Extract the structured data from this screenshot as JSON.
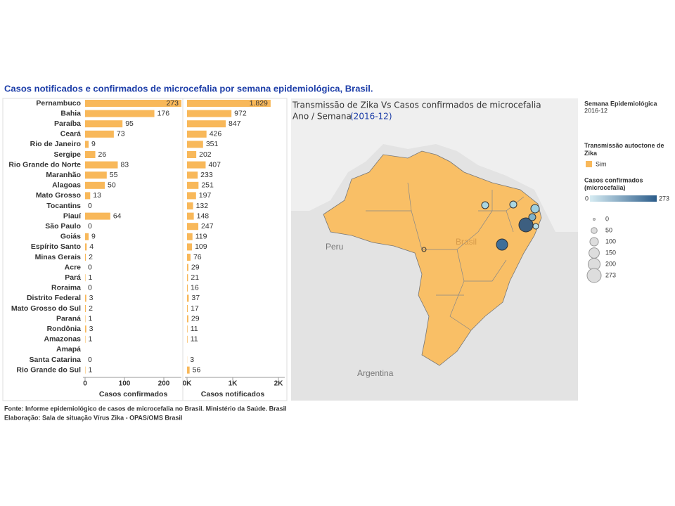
{
  "chart_data": [
    {
      "type": "bar",
      "orientation": "horizontal",
      "title": "Casos notificados e confirmados de microcefalia por semana epidemiológica, Brasil.",
      "categories": [
        "Pernambuco",
        "Bahia",
        "Paraíba",
        "Ceará",
        "Rio de Janeiro",
        "Sergipe",
        "Rio Grande do Norte",
        "Maranhão",
        "Alagoas",
        "Mato Grosso",
        "Tocantins",
        "Piauí",
        "São Paulo",
        "Goiás",
        "Espírito Santo",
        "Minas Gerais",
        "Acre",
        "Pará",
        "Roraima",
        "Distrito Federal",
        "Mato Grosso do Sul",
        "Paraná",
        "Rondônia",
        "Amazonas",
        "Amapá",
        "Santa Catarina",
        "Rio Grande do Sul"
      ],
      "values": [
        273,
        176,
        95,
        73,
        9,
        26,
        83,
        55,
        50,
        13,
        0,
        64,
        0,
        9,
        4,
        2,
        0,
        1,
        0,
        3,
        2,
        1,
        3,
        1,
        null,
        0,
        1
      ],
      "color": "#f8b85a",
      "xlabel": "Casos confirmados",
      "xlim": [
        0,
        245
      ],
      "xticks": [
        0,
        100,
        200
      ]
    },
    {
      "type": "bar",
      "orientation": "horizontal",
      "values": [
        1829,
        972,
        847,
        426,
        351,
        202,
        407,
        233,
        251,
        197,
        132,
        148,
        247,
        119,
        109,
        76,
        29,
        21,
        16,
        37,
        17,
        29,
        11,
        11,
        null,
        3,
        56
      ],
      "value_labels": [
        "1.829",
        "972",
        "847",
        "426",
        "351",
        "202",
        "407",
        "233",
        "251",
        "197",
        "132",
        "148",
        "247",
        "119",
        "109",
        "76",
        "29",
        "21",
        "16",
        "37",
        "17",
        "29",
        "11",
        "11",
        null,
        "3",
        "56"
      ],
      "color": "#f8b85a",
      "xlabel": "Casos notificados",
      "xlim": [
        0,
        2000
      ],
      "xticks": [
        {
          "value": 0,
          "label": "0K"
        },
        {
          "value": 1000,
          "label": "1K"
        },
        {
          "value": 2000,
          "label": "2K"
        }
      ]
    }
  ],
  "map": {
    "title": "Transmissão de Zika Vs Casos confirmados de microcefalia",
    "subtitle": "Ano / Semana",
    "period": "(2016-12)",
    "labels": [
      "Peru",
      "Argentina",
      "Brasil"
    ]
  },
  "legend": {
    "week_title": "Semana Epidemiológica",
    "week": "2016-12",
    "transmission_title": "Transmissão autoctone de Zika",
    "transmission_item": "Sim",
    "color_title": "Casos confirmados (microcefalia)",
    "color_min": "0",
    "color_max": "273",
    "size_values": [
      0,
      50,
      100,
      150,
      200,
      273
    ]
  },
  "footer": [
    "Fonte: Informe epidemiológico de casos de microcefalia no Brasil. Ministério da Saúde. Brasil",
    "Elaboração: Sala de situação Vírus Zika - OPAS/OMS Brasil"
  ]
}
